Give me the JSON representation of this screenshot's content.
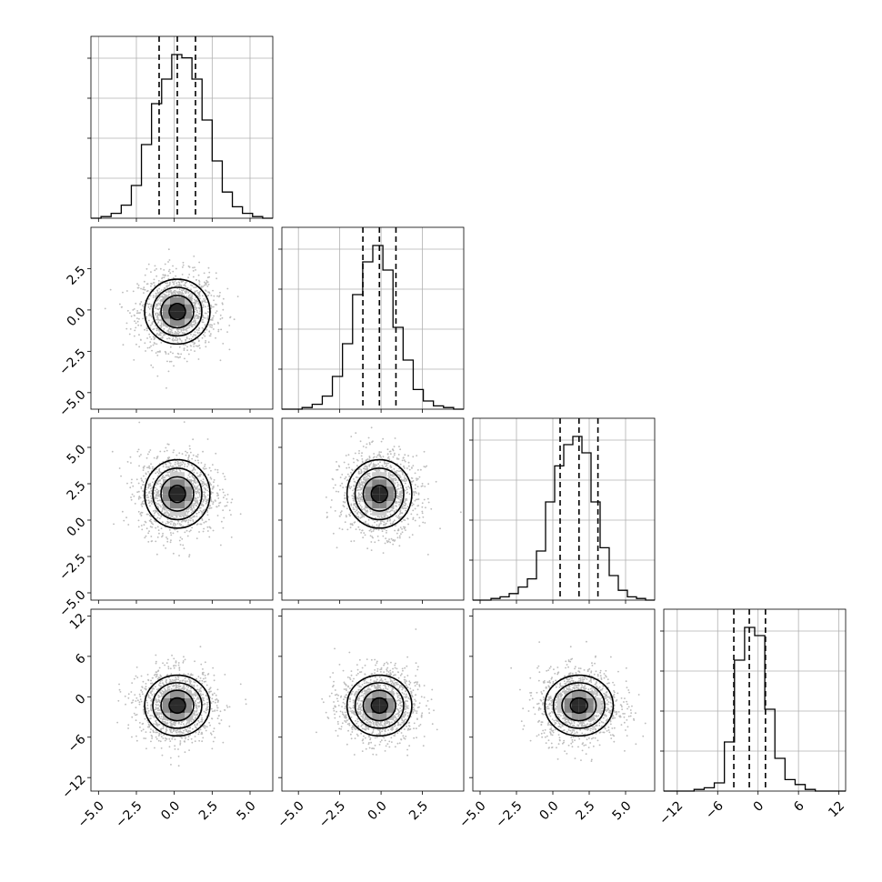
{
  "chart_data": {
    "type": "corner",
    "params": [
      {
        "range": [
          -5.5,
          6.5
        ],
        "ticks": [
          -5.0,
          -2.5,
          0.0,
          2.5,
          5.0
        ],
        "tick_labels": [
          "−5.0",
          "−2.5",
          "0.0",
          "2.5",
          "5.0"
        ],
        "median": 0.2,
        "q16": -1.0,
        "q84": 1.4,
        "sigma": 1.1,
        "hist": [
          0,
          0.01,
          0.03,
          0.08,
          0.2,
          0.45,
          0.7,
          0.85,
          1.0,
          0.98,
          0.85,
          0.6,
          0.35,
          0.16,
          0.07,
          0.03,
          0.01,
          0
        ]
      },
      {
        "range": [
          -6.0,
          5.0
        ],
        "ticks": [
          -5.0,
          -2.5,
          0.0,
          2.5
        ],
        "tick_labels": [
          "−5.0",
          "−2.5",
          "0.0",
          "2.5"
        ],
        "median": -0.1,
        "q16": -1.1,
        "q84": 0.9,
        "sigma": 1.0,
        "hist": [
          0,
          0,
          0.01,
          0.03,
          0.08,
          0.2,
          0.4,
          0.7,
          0.9,
          1.0,
          0.85,
          0.5,
          0.3,
          0.12,
          0.05,
          0.02,
          0.01,
          0
        ]
      },
      {
        "range": [
          -5.5,
          7.0
        ],
        "ticks": [
          -5.0,
          -2.5,
          0.0,
          2.5,
          5.0
        ],
        "tick_labels": [
          "−5.0",
          "−2.5",
          "0.0",
          "2.5",
          "5.0"
        ],
        "median": 1.8,
        "q16": 0.5,
        "q84": 3.1,
        "sigma": 1.2,
        "hist": [
          0,
          0,
          0.01,
          0.02,
          0.04,
          0.08,
          0.13,
          0.3,
          0.6,
          0.82,
          0.95,
          1.0,
          0.9,
          0.6,
          0.32,
          0.15,
          0.06,
          0.02,
          0.01,
          0
        ]
      },
      {
        "range": [
          -14.0,
          13.0
        ],
        "ticks": [
          -12,
          -6,
          0,
          6,
          12
        ],
        "tick_labels": [
          "−12",
          "−6",
          "0",
          "6",
          "12"
        ],
        "median": -1.3,
        "q16": -3.6,
        "q84": 1.1,
        "sigma": 2.3,
        "hist": [
          0,
          0,
          0,
          0.01,
          0.02,
          0.05,
          0.3,
          0.8,
          1.0,
          0.95,
          0.5,
          0.2,
          0.07,
          0.04,
          0.01,
          0,
          0,
          0
        ]
      }
    ],
    "y_tick_labels": {
      "1": [
        "2.5",
        "0.0",
        "−2.5",
        "−5.0"
      ],
      "2": [
        "5.0",
        "2.5",
        "0.0",
        "−2.5",
        "−5.0"
      ],
      "3": [
        "12",
        "6",
        "0",
        "−6",
        "−12"
      ]
    },
    "levels": [
      0.5,
      1.0,
      1.5,
      2.0
    ],
    "grid": true,
    "title": "",
    "xlabel": "",
    "ylabel": ""
  }
}
